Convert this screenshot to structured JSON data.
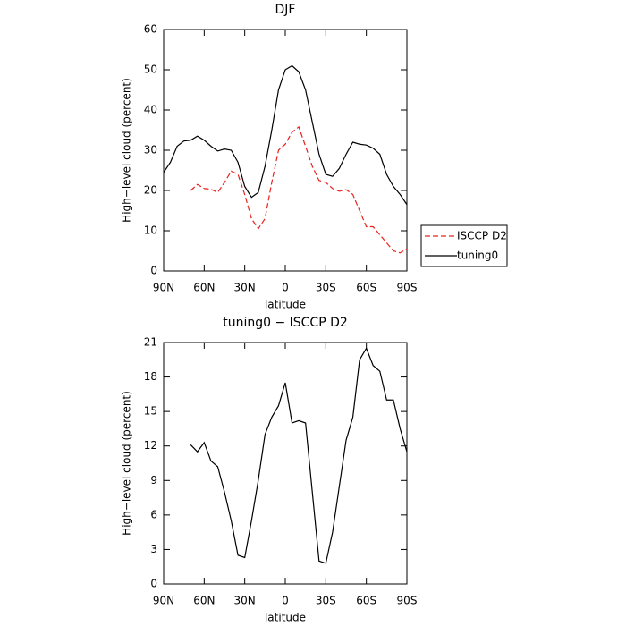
{
  "chart_data": [
    {
      "type": "line",
      "title": "DJF",
      "x_label": "latitude",
      "y_label": "High−level cloud (percent)",
      "x": [
        90,
        85,
        80,
        75,
        70,
        65,
        60,
        55,
        50,
        45,
        40,
        35,
        30,
        25,
        20,
        15,
        10,
        5,
        0,
        -5,
        -10,
        -15,
        -20,
        -25,
        -30,
        -35,
        -40,
        -45,
        -50,
        -55,
        -60,
        -65,
        -70,
        -75,
        -80,
        -85,
        -90
      ],
      "series": [
        {
          "name": "ISCCP D2",
          "color": "#e8221e",
          "style": "dashed",
          "values": [
            null,
            null,
            null,
            null,
            20,
            21.5,
            20.5,
            20.3,
            19.5,
            22,
            24.8,
            24,
            19,
            13,
            10.5,
            13,
            22,
            30,
            31.5,
            34.5,
            35.8,
            31,
            26,
            22.5,
            22,
            20.5,
            19.8,
            20.2,
            19,
            15,
            11,
            11,
            9,
            7,
            5,
            4.5,
            5.5
          ]
        },
        {
          "name": "tuning0",
          "color": "#000000",
          "style": "solid",
          "values": [
            24.5,
            27,
            31,
            32.3,
            32.5,
            33.5,
            32.5,
            31,
            29.8,
            30.3,
            30,
            27,
            21,
            18.3,
            19.5,
            26,
            35,
            45,
            50,
            51,
            49.5,
            45,
            37,
            29,
            24,
            23.5,
            25.5,
            29,
            32,
            31.5,
            31.3,
            30.5,
            29,
            24,
            21,
            19,
            16.5
          ]
        }
      ],
      "xlim": [
        90,
        -90
      ],
      "xticks": [
        {
          "value": 90,
          "label": "90N"
        },
        {
          "value": 60,
          "label": "60N"
        },
        {
          "value": 30,
          "label": "30N"
        },
        0,
        {
          "value": -30,
          "label": "30S"
        },
        {
          "value": -60,
          "label": "60S"
        },
        {
          "value": -90,
          "label": "90S"
        }
      ],
      "ylim": [
        0,
        60
      ],
      "yticks": [
        0,
        10,
        20,
        30,
        40,
        50,
        60
      ],
      "legend": "right"
    },
    {
      "type": "line",
      "title": "tuning0 − ISCCP D2",
      "x_label": "latitude",
      "y_label": "High−level cloud (percent)",
      "x": [
        70,
        65,
        60,
        55,
        50,
        45,
        40,
        35,
        30,
        25,
        20,
        15,
        10,
        5,
        0,
        -5,
        -10,
        -15,
        -20,
        -25,
        -30,
        -35,
        -40,
        -45,
        -50,
        -55,
        -60,
        -65,
        -70,
        -75,
        -80,
        -85,
        -90
      ],
      "series": [
        {
          "color": "#000000",
          "style": "solid",
          "values": [
            12.1,
            11.5,
            12.3,
            10.7,
            10.2,
            8,
            5.5,
            2.5,
            2.3,
            5.5,
            9,
            13,
            14.5,
            15.5,
            17.5,
            14,
            14.2,
            14,
            8,
            2,
            1.8,
            4.5,
            8.5,
            12.5,
            14.5,
            19.5,
            20.5,
            19,
            18.5,
            16,
            16,
            13.5,
            11.5
          ]
        }
      ],
      "xlim": [
        90,
        -90
      ],
      "xticks": [
        {
          "value": 90,
          "label": "90N"
        },
        {
          "value": 60,
          "label": "60N"
        },
        {
          "value": 30,
          "label": "30N"
        },
        0,
        {
          "value": -30,
          "label": "30S"
        },
        {
          "value": -60,
          "label": "60S"
        },
        {
          "value": -90,
          "label": "90S"
        }
      ],
      "ylim": [
        0,
        21
      ],
      "yticks": [
        0,
        3,
        6,
        9,
        12,
        15,
        18,
        21
      ]
    }
  ]
}
